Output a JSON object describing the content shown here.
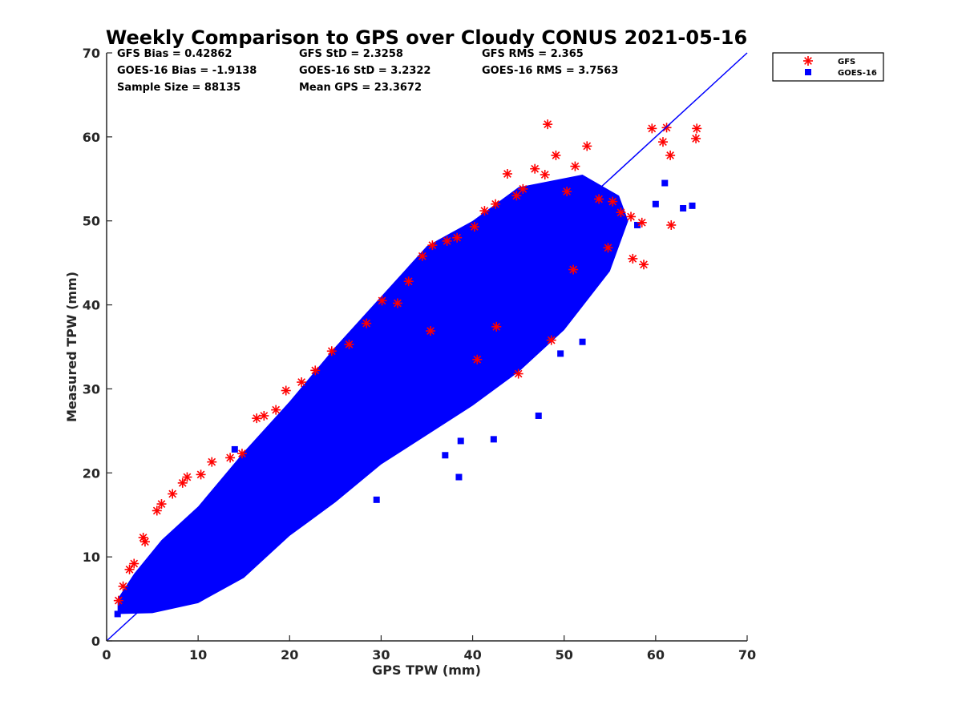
{
  "chart_data": {
    "type": "scatter",
    "title": "Weekly Comparison to GPS over Cloudy CONUS 2021-05-16",
    "xlabel": "GPS TPW (mm)",
    "ylabel": "Measured TPW (mm)",
    "xlim": [
      0,
      70
    ],
    "ylim": [
      0,
      70
    ],
    "xticks": [
      "0",
      "10",
      "20",
      "30",
      "40",
      "50",
      "60",
      "70"
    ],
    "yticks": [
      "0",
      "10",
      "20",
      "30",
      "40",
      "50",
      "60",
      "70"
    ],
    "grid": false,
    "legend_position": "outside-top-right",
    "reference_line": {
      "x": [
        0,
        70
      ],
      "y": [
        0,
        70
      ],
      "color": "#0000ff"
    },
    "stats": [
      [
        "GFS Bias = 0.42862",
        "GFS StD = 2.3258",
        "GFS RMS = 2.365"
      ],
      [
        "GOES-16 Bias = -1.9138",
        "GOES-16 StD = 3.2322",
        "GOES-16 RMS = 3.7563"
      ],
      [
        "Sample Size = 88135",
        "Mean GPS = 23.3672",
        ""
      ]
    ],
    "series": [
      {
        "name": "GFS",
        "marker": "asterisk",
        "color": "#ff0000",
        "x": [
          1.3,
          1.8,
          2.5,
          3.0,
          4.2,
          4.0,
          5.5,
          6.0,
          7.2,
          8.3,
          8.8,
          10.3,
          11.5,
          13.5,
          14.8,
          16.4,
          17.2,
          18.5,
          19.6,
          21.3,
          22.8,
          24.6,
          26.5,
          28.4,
          30.1,
          31.8,
          33.0,
          34.5,
          35.6,
          37.2,
          38.3,
          40.2,
          41.3,
          42.5,
          43.8,
          44.8,
          45.5,
          46.8,
          47.9,
          48.2,
          49.1,
          50.3,
          51.2,
          52.5,
          53.8,
          55.3,
          56.2,
          57.3,
          58.5,
          59.6,
          60.8,
          61.2,
          61.7,
          64.5,
          64.4,
          48.6,
          45.0,
          40.5,
          35.4,
          42.6,
          51.0,
          54.8,
          57.5,
          58.7,
          61.6
        ],
        "y": [
          4.8,
          6.5,
          8.5,
          9.2,
          11.8,
          12.3,
          15.5,
          16.3,
          17.5,
          18.8,
          19.5,
          19.8,
          21.3,
          21.8,
          22.3,
          26.5,
          26.8,
          27.5,
          29.8,
          30.8,
          32.2,
          34.5,
          35.3,
          37.8,
          40.5,
          40.2,
          42.8,
          45.8,
          47.1,
          47.6,
          48.0,
          49.3,
          51.2,
          52.0,
          55.6,
          53.0,
          53.8,
          56.2,
          55.5,
          61.5,
          57.8,
          53.5,
          56.5,
          58.9,
          52.6,
          52.3,
          51.0,
          50.5,
          49.8,
          61.0,
          59.4,
          61.1,
          49.5,
          61.0,
          59.8,
          35.8,
          31.8,
          33.5,
          36.9,
          37.4,
          44.2,
          46.8,
          45.5,
          44.8,
          57.8
        ]
      },
      {
        "name": "GOES-16",
        "marker": "square",
        "color": "#0000ff",
        "x": [
          1.2,
          2.0,
          3.0,
          4.0,
          5.0,
          6.0,
          7.0,
          8.0,
          9.0,
          10.0,
          12.0,
          14.0,
          16.0,
          18.0,
          20.0,
          22.0,
          24.0,
          26.0,
          28.0,
          30.0,
          32.0,
          34.0,
          36.0,
          38.0,
          40.0,
          42.0,
          44.0,
          46.0,
          48.0,
          50.0,
          52.0,
          54.0,
          56.0,
          58.0,
          60.0,
          61.0,
          63.0,
          64.0,
          38.5,
          38.7,
          42.3,
          47.2,
          52.0,
          49.6,
          14.0,
          29.5,
          37.0,
          40.8
        ],
        "y": [
          3.2,
          3.8,
          4.5,
          5.0,
          5.8,
          6.8,
          7.5,
          8.4,
          9.3,
          10.5,
          12.0,
          13.5,
          15.5,
          17.0,
          19.0,
          20.8,
          22.5,
          24.5,
          26.0,
          28.0,
          30.0,
          31.5,
          33.5,
          35.0,
          37.0,
          38.5,
          40.0,
          41.5,
          43.0,
          44.5,
          46.0,
          47.0,
          48.5,
          49.5,
          52.0,
          54.5,
          51.5,
          51.8,
          19.5,
          23.8,
          24.0,
          26.8,
          35.6,
          34.2,
          22.8,
          16.8,
          22.1,
          35.5
        ]
      }
    ]
  },
  "legend": {
    "items": [
      {
        "label": "GFS"
      },
      {
        "label": "GOES-16"
      }
    ]
  }
}
